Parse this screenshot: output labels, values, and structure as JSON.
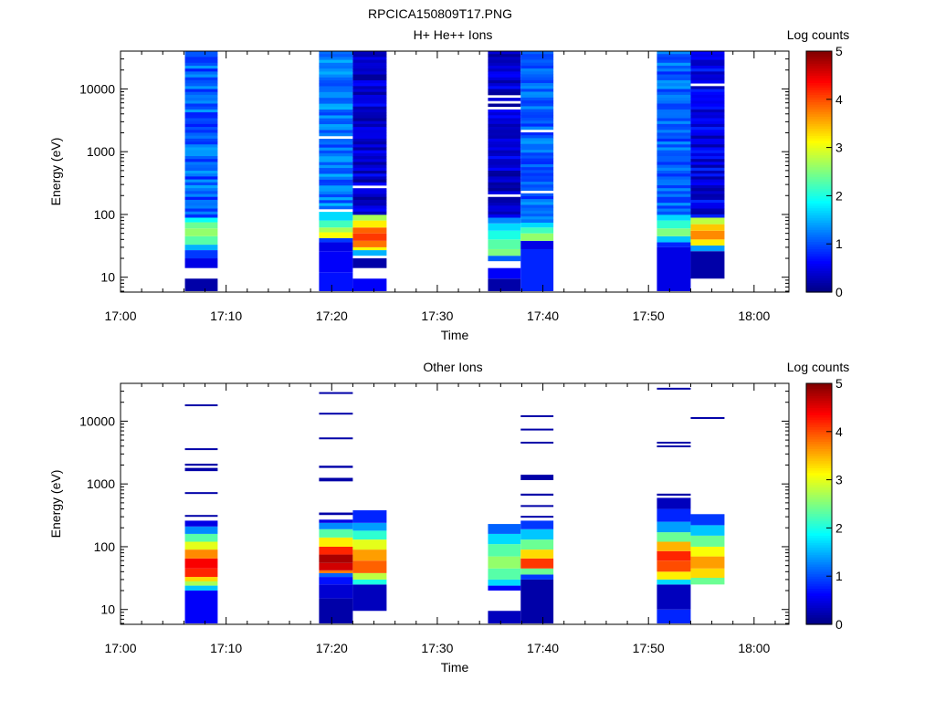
{
  "figure_title": "RPCICA150809T17.PNG",
  "chart_data": [
    {
      "type": "heatmap",
      "title": "H+ He++ Ions",
      "xlabel": "Time",
      "ylabel": "Energy (eV)",
      "colorbar_label": "Log counts",
      "colorbar_ticks": [
        "0",
        "1",
        "2",
        "3",
        "4",
        "5"
      ],
      "colorbar_range": [
        0,
        5
      ],
      "x_ticks": [
        "17:00",
        "17:10",
        "17:20",
        "17:30",
        "17:40",
        "17:50",
        "18:00"
      ],
      "x_range_minutes": [
        0,
        63.3
      ],
      "y_scale": "log",
      "y_ticks": [
        "10",
        "100",
        "1000",
        "10000"
      ],
      "y_range": [
        5.8,
        40000
      ],
      "columns": [
        {
          "t_start": 6.1,
          "t_end": 9.2,
          "cells": [
            {
              "e_lo": 6,
              "e_hi": 9.5,
              "v": 0.2
            },
            {
              "e_lo": 14,
              "e_hi": 20,
              "v": 0.5
            },
            {
              "e_lo": 20,
              "e_hi": 27,
              "v": 0.9
            },
            {
              "e_lo": 27,
              "e_hi": 33,
              "v": 1.5
            },
            {
              "e_lo": 33,
              "e_hi": 45,
              "v": 2.3
            },
            {
              "e_lo": 45,
              "e_hi": 60,
              "v": 2.6
            },
            {
              "e_lo": 60,
              "e_hi": 75,
              "v": 2.4
            },
            {
              "e_lo": 75,
              "e_hi": 90,
              "v": 1.9
            },
            {
              "e_lo": 90,
              "e_hi": 40000,
              "v": 1.1,
              "variation": 0.35
            }
          ]
        },
        {
          "t_start": 18.8,
          "t_end": 22.0,
          "cells": [
            {
              "e_lo": 6,
              "e_hi": 12,
              "v": 0.7
            },
            {
              "e_lo": 12,
              "e_hi": 26,
              "v": 0.6
            },
            {
              "e_lo": 26,
              "e_hi": 36,
              "v": 0.5
            },
            {
              "e_lo": 36,
              "e_hi": 42,
              "v": 0.9
            },
            {
              "e_lo": 42,
              "e_hi": 52,
              "v": 3.1
            },
            {
              "e_lo": 52,
              "e_hi": 62,
              "v": 2.7
            },
            {
              "e_lo": 62,
              "e_hi": 80,
              "v": 2.2
            },
            {
              "e_lo": 80,
              "e_hi": 110,
              "v": 1.7
            },
            {
              "e_lo": 110,
              "e_hi": 40000,
              "v": 1.2,
              "variation": 0.35
            }
          ]
        },
        {
          "t_start": 22.0,
          "t_end": 25.2,
          "cells": [
            {
              "e_lo": 6,
              "e_hi": 9.5,
              "v": 0.6
            },
            {
              "e_lo": 14,
              "e_hi": 20,
              "v": 0.2
            },
            {
              "e_lo": 22,
              "e_hi": 27,
              "v": 1.5
            },
            {
              "e_lo": 27,
              "e_hi": 30,
              "v": 3.1
            },
            {
              "e_lo": 30,
              "e_hi": 38,
              "v": 3.8
            },
            {
              "e_lo": 38,
              "e_hi": 50,
              "v": 4.1
            },
            {
              "e_lo": 50,
              "e_hi": 62,
              "v": 3.9
            },
            {
              "e_lo": 62,
              "e_hi": 80,
              "v": 3.2
            },
            {
              "e_lo": 80,
              "e_hi": 100,
              "v": 2.7
            },
            {
              "e_lo": 100,
              "e_hi": 40000,
              "v": 0.4,
              "variation": 0.3
            }
          ]
        },
        {
          "t_start": 34.8,
          "t_end": 37.9,
          "cells": [
            {
              "e_lo": 6,
              "e_hi": 9.5,
              "v": 0.2
            },
            {
              "e_lo": 9.5,
              "e_hi": 14,
              "v": 0.6
            },
            {
              "e_lo": 18,
              "e_hi": 22,
              "v": 1.1
            },
            {
              "e_lo": 22,
              "e_hi": 28,
              "v": 2.5
            },
            {
              "e_lo": 28,
              "e_hi": 40,
              "v": 2.3
            },
            {
              "e_lo": 40,
              "e_hi": 55,
              "v": 2.0
            },
            {
              "e_lo": 55,
              "e_hi": 72,
              "v": 1.7
            },
            {
              "e_lo": 72,
              "e_hi": 90,
              "v": 1.3
            },
            {
              "e_lo": 90,
              "e_hi": 40000,
              "v": 0.4,
              "variation": 0.3
            }
          ]
        },
        {
          "t_start": 37.9,
          "t_end": 41.0,
          "cells": [
            {
              "e_lo": 6,
              "e_hi": 28,
              "v": 0.8
            },
            {
              "e_lo": 28,
              "e_hi": 38,
              "v": 0.5
            },
            {
              "e_lo": 38,
              "e_hi": 50,
              "v": 2.6
            },
            {
              "e_lo": 50,
              "e_hi": 62,
              "v": 2.2
            },
            {
              "e_lo": 62,
              "e_hi": 75,
              "v": 1.7
            },
            {
              "e_lo": 75,
              "e_hi": 40000,
              "v": 1.1,
              "variation": 0.3
            }
          ]
        },
        {
          "t_start": 50.8,
          "t_end": 54.0,
          "cells": [
            {
              "e_lo": 6,
              "e_hi": 30,
              "v": 0.5
            },
            {
              "e_lo": 30,
              "e_hi": 36,
              "v": 0.8
            },
            {
              "e_lo": 36,
              "e_hi": 45,
              "v": 1.6
            },
            {
              "e_lo": 45,
              "e_hi": 60,
              "v": 2.5
            },
            {
              "e_lo": 60,
              "e_hi": 80,
              "v": 2.1
            },
            {
              "e_lo": 80,
              "e_hi": 100,
              "v": 1.7
            },
            {
              "e_lo": 100,
              "e_hi": 40000,
              "v": 1.1,
              "variation": 0.3
            }
          ]
        },
        {
          "t_start": 54.0,
          "t_end": 57.2,
          "cells": [
            {
              "e_lo": 9.5,
              "e_hi": 26,
              "v": 0.2
            },
            {
              "e_lo": 26,
              "e_hi": 32,
              "v": 1.4
            },
            {
              "e_lo": 32,
              "e_hi": 40,
              "v": 3.2
            },
            {
              "e_lo": 40,
              "e_hi": 55,
              "v": 3.7
            },
            {
              "e_lo": 55,
              "e_hi": 70,
              "v": 3.4
            },
            {
              "e_lo": 70,
              "e_hi": 90,
              "v": 2.8
            },
            {
              "e_lo": 90,
              "e_hi": 40000,
              "v": 0.5,
              "variation": 0.35
            }
          ]
        }
      ]
    },
    {
      "type": "heatmap",
      "title": "Other Ions",
      "xlabel": "Time",
      "ylabel": "Energy (eV)",
      "colorbar_label": "Log counts",
      "colorbar_ticks": [
        "0",
        "1",
        "2",
        "3",
        "4",
        "5"
      ],
      "colorbar_range": [
        0,
        5
      ],
      "x_ticks": [
        "17:00",
        "17:10",
        "17:20",
        "17:30",
        "17:40",
        "17:50",
        "18:00"
      ],
      "x_range_minutes": [
        0,
        63.3
      ],
      "y_scale": "log",
      "y_ticks": [
        "10",
        "100",
        "1000",
        "10000"
      ],
      "y_range": [
        5.8,
        40000
      ],
      "columns": [
        {
          "t_start": 6.1,
          "t_end": 9.2,
          "cells": [
            {
              "e_lo": 6,
              "e_hi": 20,
              "v": 0.6
            },
            {
              "e_lo": 20,
              "e_hi": 24,
              "v": 1.6
            },
            {
              "e_lo": 24,
              "e_hi": 28,
              "v": 2.7
            },
            {
              "e_lo": 28,
              "e_hi": 33,
              "v": 3.3
            },
            {
              "e_lo": 33,
              "e_hi": 45,
              "v": 4.2
            },
            {
              "e_lo": 45,
              "e_hi": 65,
              "v": 4.4
            },
            {
              "e_lo": 65,
              "e_hi": 90,
              "v": 3.7
            },
            {
              "e_lo": 90,
              "e_hi": 120,
              "v": 3.0
            },
            {
              "e_lo": 120,
              "e_hi": 160,
              "v": 2.3
            },
            {
              "e_lo": 160,
              "e_hi": 210,
              "v": 1.3
            },
            {
              "e_lo": 210,
              "e_hi": 260,
              "v": 0.5
            },
            {
              "e_lo": 300,
              "e_hi": 320,
              "v": 0.2
            },
            {
              "e_lo": 700,
              "e_hi": 740,
              "v": 0.2
            },
            {
              "e_lo": 1600,
              "e_hi": 1800,
              "v": 0.2
            },
            {
              "e_lo": 1950,
              "e_hi": 2100,
              "v": 0.2
            },
            {
              "e_lo": 3500,
              "e_hi": 3700,
              "v": 0.2
            },
            {
              "e_lo": 17500,
              "e_hi": 18500,
              "v": 0.2
            }
          ]
        },
        {
          "t_start": 18.8,
          "t_end": 22.0,
          "cells": [
            {
              "e_lo": 6,
              "e_hi": 15,
              "v": 0.2
            },
            {
              "e_lo": 15,
              "e_hi": 25,
              "v": 0.4
            },
            {
              "e_lo": 25,
              "e_hi": 33,
              "v": 0.7
            },
            {
              "e_lo": 33,
              "e_hi": 38,
              "v": 1.1
            },
            {
              "e_lo": 38,
              "e_hi": 42,
              "v": 3.8
            },
            {
              "e_lo": 42,
              "e_hi": 55,
              "v": 4.6
            },
            {
              "e_lo": 55,
              "e_hi": 75,
              "v": 4.8
            },
            {
              "e_lo": 75,
              "e_hi": 100,
              "v": 4.2
            },
            {
              "e_lo": 100,
              "e_hi": 140,
              "v": 3.2
            },
            {
              "e_lo": 140,
              "e_hi": 190,
              "v": 2.3
            },
            {
              "e_lo": 190,
              "e_hi": 240,
              "v": 1.3
            },
            {
              "e_lo": 240,
              "e_hi": 270,
              "v": 0.5
            },
            {
              "e_lo": 320,
              "e_hi": 350,
              "v": 0.2
            },
            {
              "e_lo": 1100,
              "e_hi": 1250,
              "v": 0.2
            },
            {
              "e_lo": 1800,
              "e_hi": 1950,
              "v": 0.2
            },
            {
              "e_lo": 5200,
              "e_hi": 5500,
              "v": 0.2
            },
            {
              "e_lo": 12800,
              "e_hi": 13600,
              "v": 0.2
            },
            {
              "e_lo": 27500,
              "e_hi": 29000,
              "v": 0.2
            }
          ]
        },
        {
          "t_start": 22.0,
          "t_end": 25.2,
          "cells": [
            {
              "e_lo": 9.5,
              "e_hi": 25,
              "v": 0.3
            },
            {
              "e_lo": 25,
              "e_hi": 30,
              "v": 2.0
            },
            {
              "e_lo": 30,
              "e_hi": 38,
              "v": 2.8
            },
            {
              "e_lo": 38,
              "e_hi": 60,
              "v": 3.9
            },
            {
              "e_lo": 60,
              "e_hi": 90,
              "v": 3.6
            },
            {
              "e_lo": 90,
              "e_hi": 130,
              "v": 3.0
            },
            {
              "e_lo": 130,
              "e_hi": 180,
              "v": 2.1
            },
            {
              "e_lo": 180,
              "e_hi": 240,
              "v": 1.4
            },
            {
              "e_lo": 240,
              "e_hi": 380,
              "v": 0.8
            }
          ]
        },
        {
          "t_start": 34.8,
          "t_end": 37.9,
          "cells": [
            {
              "e_lo": 6,
              "e_hi": 9.5,
              "v": 0.3
            },
            {
              "e_lo": 20,
              "e_hi": 24,
              "v": 0.6
            },
            {
              "e_lo": 24,
              "e_hi": 30,
              "v": 1.7
            },
            {
              "e_lo": 30,
              "e_hi": 45,
              "v": 2.3
            },
            {
              "e_lo": 45,
              "e_hi": 70,
              "v": 2.6
            },
            {
              "e_lo": 70,
              "e_hi": 110,
              "v": 2.3
            },
            {
              "e_lo": 110,
              "e_hi": 160,
              "v": 1.7
            },
            {
              "e_lo": 160,
              "e_hi": 230,
              "v": 1.1
            }
          ]
        },
        {
          "t_start": 37.9,
          "t_end": 41.0,
          "cells": [
            {
              "e_lo": 6,
              "e_hi": 30,
              "v": 0.2
            },
            {
              "e_lo": 30,
              "e_hi": 36,
              "v": 0.9
            },
            {
              "e_lo": 36,
              "e_hi": 45,
              "v": 2.4
            },
            {
              "e_lo": 45,
              "e_hi": 65,
              "v": 4.1
            },
            {
              "e_lo": 65,
              "e_hi": 90,
              "v": 3.3
            },
            {
              "e_lo": 90,
              "e_hi": 130,
              "v": 2.4
            },
            {
              "e_lo": 130,
              "e_hi": 190,
              "v": 1.6
            },
            {
              "e_lo": 190,
              "e_hi": 260,
              "v": 0.9
            },
            {
              "e_lo": 290,
              "e_hi": 310,
              "v": 0.2
            },
            {
              "e_lo": 430,
              "e_hi": 460,
              "v": 0.2
            },
            {
              "e_lo": 650,
              "e_hi": 700,
              "v": 0.2
            },
            {
              "e_lo": 1150,
              "e_hi": 1400,
              "v": 0.2
            },
            {
              "e_lo": 4400,
              "e_hi": 4700,
              "v": 0.2
            },
            {
              "e_lo": 7200,
              "e_hi": 7600,
              "v": 0.2
            },
            {
              "e_lo": 11700,
              "e_hi": 12400,
              "v": 0.2
            }
          ]
        },
        {
          "t_start": 50.8,
          "t_end": 54.0,
          "cells": [
            {
              "e_lo": 6,
              "e_hi": 10,
              "v": 0.8
            },
            {
              "e_lo": 10,
              "e_hi": 25,
              "v": 0.3
            },
            {
              "e_lo": 25,
              "e_hi": 30,
              "v": 1.7
            },
            {
              "e_lo": 30,
              "e_hi": 40,
              "v": 3.2
            },
            {
              "e_lo": 40,
              "e_hi": 60,
              "v": 4.0
            },
            {
              "e_lo": 60,
              "e_hi": 85,
              "v": 4.2
            },
            {
              "e_lo": 85,
              "e_hi": 120,
              "v": 3.5
            },
            {
              "e_lo": 120,
              "e_hi": 170,
              "v": 2.4
            },
            {
              "e_lo": 170,
              "e_hi": 250,
              "v": 1.4
            },
            {
              "e_lo": 250,
              "e_hi": 400,
              "v": 0.8
            },
            {
              "e_lo": 400,
              "e_hi": 600,
              "v": 0.3
            },
            {
              "e_lo": 650,
              "e_hi": 700,
              "v": 0.2
            },
            {
              "e_lo": 3900,
              "e_hi": 4100,
              "v": 0.2
            },
            {
              "e_lo": 4500,
              "e_hi": 4700,
              "v": 0.2
            },
            {
              "e_lo": 32000,
              "e_hi": 34000,
              "v": 0.2
            }
          ]
        },
        {
          "t_start": 54.0,
          "t_end": 57.2,
          "cells": [
            {
              "e_lo": 25,
              "e_hi": 32,
              "v": 2.4
            },
            {
              "e_lo": 32,
              "e_hi": 45,
              "v": 3.3
            },
            {
              "e_lo": 45,
              "e_hi": 70,
              "v": 3.6
            },
            {
              "e_lo": 70,
              "e_hi": 100,
              "v": 3.1
            },
            {
              "e_lo": 100,
              "e_hi": 150,
              "v": 2.4
            },
            {
              "e_lo": 150,
              "e_hi": 220,
              "v": 1.6
            },
            {
              "e_lo": 220,
              "e_hi": 330,
              "v": 0.9
            },
            {
              "e_lo": 10900,
              "e_hi": 11600,
              "v": 0.2
            }
          ]
        }
      ]
    }
  ]
}
